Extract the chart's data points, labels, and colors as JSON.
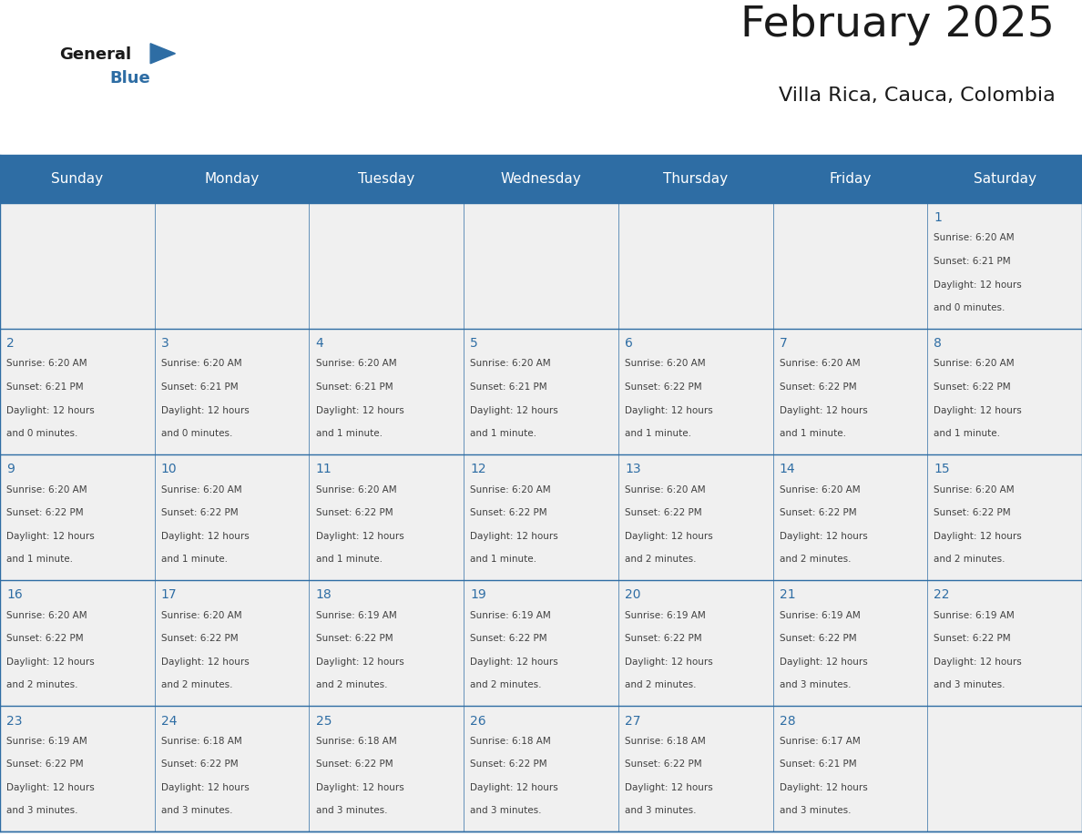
{
  "title": "February 2025",
  "subtitle": "Villa Rica, Cauca, Colombia",
  "header_bg": "#2E6DA4",
  "header_text": "#FFFFFF",
  "cell_bg_light": "#F0F0F0",
  "border_color": "#2E6DA4",
  "day_names": [
    "Sunday",
    "Monday",
    "Tuesday",
    "Wednesday",
    "Thursday",
    "Friday",
    "Saturday"
  ],
  "title_color": "#1a1a1a",
  "subtitle_color": "#1a1a1a",
  "day_number_color": "#2E6DA4",
  "cell_text_color": "#404040",
  "calendar": [
    [
      null,
      null,
      null,
      null,
      null,
      null,
      {
        "day": 1,
        "sunrise": "6:20 AM",
        "sunset": "6:21 PM",
        "daylight_line1": "12 hours",
        "daylight_line2": "and 0 minutes."
      }
    ],
    [
      {
        "day": 2,
        "sunrise": "6:20 AM",
        "sunset": "6:21 PM",
        "daylight_line1": "12 hours",
        "daylight_line2": "and 0 minutes."
      },
      {
        "day": 3,
        "sunrise": "6:20 AM",
        "sunset": "6:21 PM",
        "daylight_line1": "12 hours",
        "daylight_line2": "and 0 minutes."
      },
      {
        "day": 4,
        "sunrise": "6:20 AM",
        "sunset": "6:21 PM",
        "daylight_line1": "12 hours",
        "daylight_line2": "and 1 minute."
      },
      {
        "day": 5,
        "sunrise": "6:20 AM",
        "sunset": "6:21 PM",
        "daylight_line1": "12 hours",
        "daylight_line2": "and 1 minute."
      },
      {
        "day": 6,
        "sunrise": "6:20 AM",
        "sunset": "6:22 PM",
        "daylight_line1": "12 hours",
        "daylight_line2": "and 1 minute."
      },
      {
        "day": 7,
        "sunrise": "6:20 AM",
        "sunset": "6:22 PM",
        "daylight_line1": "12 hours",
        "daylight_line2": "and 1 minute."
      },
      {
        "day": 8,
        "sunrise": "6:20 AM",
        "sunset": "6:22 PM",
        "daylight_line1": "12 hours",
        "daylight_line2": "and 1 minute."
      }
    ],
    [
      {
        "day": 9,
        "sunrise": "6:20 AM",
        "sunset": "6:22 PM",
        "daylight_line1": "12 hours",
        "daylight_line2": "and 1 minute."
      },
      {
        "day": 10,
        "sunrise": "6:20 AM",
        "sunset": "6:22 PM",
        "daylight_line1": "12 hours",
        "daylight_line2": "and 1 minute."
      },
      {
        "day": 11,
        "sunrise": "6:20 AM",
        "sunset": "6:22 PM",
        "daylight_line1": "12 hours",
        "daylight_line2": "and 1 minute."
      },
      {
        "day": 12,
        "sunrise": "6:20 AM",
        "sunset": "6:22 PM",
        "daylight_line1": "12 hours",
        "daylight_line2": "and 1 minute."
      },
      {
        "day": 13,
        "sunrise": "6:20 AM",
        "sunset": "6:22 PM",
        "daylight_line1": "12 hours",
        "daylight_line2": "and 2 minutes."
      },
      {
        "day": 14,
        "sunrise": "6:20 AM",
        "sunset": "6:22 PM",
        "daylight_line1": "12 hours",
        "daylight_line2": "and 2 minutes."
      },
      {
        "day": 15,
        "sunrise": "6:20 AM",
        "sunset": "6:22 PM",
        "daylight_line1": "12 hours",
        "daylight_line2": "and 2 minutes."
      }
    ],
    [
      {
        "day": 16,
        "sunrise": "6:20 AM",
        "sunset": "6:22 PM",
        "daylight_line1": "12 hours",
        "daylight_line2": "and 2 minutes."
      },
      {
        "day": 17,
        "sunrise": "6:20 AM",
        "sunset": "6:22 PM",
        "daylight_line1": "12 hours",
        "daylight_line2": "and 2 minutes."
      },
      {
        "day": 18,
        "sunrise": "6:19 AM",
        "sunset": "6:22 PM",
        "daylight_line1": "12 hours",
        "daylight_line2": "and 2 minutes."
      },
      {
        "day": 19,
        "sunrise": "6:19 AM",
        "sunset": "6:22 PM",
        "daylight_line1": "12 hours",
        "daylight_line2": "and 2 minutes."
      },
      {
        "day": 20,
        "sunrise": "6:19 AM",
        "sunset": "6:22 PM",
        "daylight_line1": "12 hours",
        "daylight_line2": "and 2 minutes."
      },
      {
        "day": 21,
        "sunrise": "6:19 AM",
        "sunset": "6:22 PM",
        "daylight_line1": "12 hours",
        "daylight_line2": "and 3 minutes."
      },
      {
        "day": 22,
        "sunrise": "6:19 AM",
        "sunset": "6:22 PM",
        "daylight_line1": "12 hours",
        "daylight_line2": "and 3 minutes."
      }
    ],
    [
      {
        "day": 23,
        "sunrise": "6:19 AM",
        "sunset": "6:22 PM",
        "daylight_line1": "12 hours",
        "daylight_line2": "and 3 minutes."
      },
      {
        "day": 24,
        "sunrise": "6:18 AM",
        "sunset": "6:22 PM",
        "daylight_line1": "12 hours",
        "daylight_line2": "and 3 minutes."
      },
      {
        "day": 25,
        "sunrise": "6:18 AM",
        "sunset": "6:22 PM",
        "daylight_line1": "12 hours",
        "daylight_line2": "and 3 minutes."
      },
      {
        "day": 26,
        "sunrise": "6:18 AM",
        "sunset": "6:22 PM",
        "daylight_line1": "12 hours",
        "daylight_line2": "and 3 minutes."
      },
      {
        "day": 27,
        "sunrise": "6:18 AM",
        "sunset": "6:22 PM",
        "daylight_line1": "12 hours",
        "daylight_line2": "and 3 minutes."
      },
      {
        "day": 28,
        "sunrise": "6:17 AM",
        "sunset": "6:21 PM",
        "daylight_line1": "12 hours",
        "daylight_line2": "and 3 minutes."
      },
      null
    ]
  ],
  "logo_general_color": "#1a1a1a",
  "logo_blue_color": "#2E6DA4",
  "fig_width": 11.88,
  "fig_height": 9.18,
  "dpi": 100
}
